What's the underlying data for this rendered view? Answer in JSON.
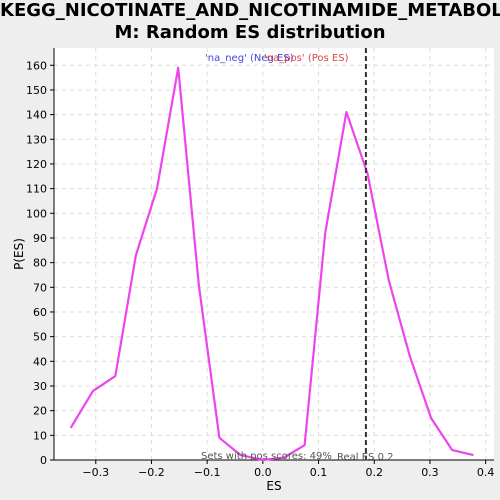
{
  "chart_data": {
    "type": "line",
    "title_line1": "KEGG_NICOTINATE_AND_NICOTINAMIDE_METABOLIS",
    "title_line2": "M: Random ES distribution",
    "xlabel": "ES",
    "ylabel": "P(ES)",
    "xlim": [
      -0.375,
      0.415
    ],
    "ylim": [
      0,
      167
    ],
    "x_ticks": [
      -0.3,
      -0.2,
      -0.1,
      0.0,
      0.1,
      0.2,
      0.3,
      0.4
    ],
    "x_tick_labels": [
      "−0.3",
      "−0.2",
      "−0.1",
      "0.0",
      "0.1",
      "0.2",
      "0.3",
      "0.4"
    ],
    "y_ticks": [
      0,
      10,
      20,
      30,
      40,
      50,
      60,
      70,
      80,
      90,
      100,
      110,
      120,
      130,
      140,
      150,
      160
    ],
    "grid": true,
    "line_color": "#ee44ee",
    "legend": [
      {
        "label": "'na_neg' (Neg ES)",
        "color": "#4444dd"
      },
      {
        "label": "'na_pos' (Pos ES)",
        "color": "#dd4444"
      }
    ],
    "series": [
      {
        "x": [
          -0.345,
          -0.305,
          -0.265,
          -0.228,
          -0.19,
          -0.152,
          -0.115,
          -0.078,
          -0.04,
          0.0,
          0.038,
          0.075,
          0.112,
          0.15,
          0.188,
          0.226,
          0.264,
          0.302,
          0.34,
          0.378
        ],
        "values": [
          13,
          28,
          34,
          83,
          110,
          159,
          71,
          9,
          2,
          0,
          1,
          6,
          92,
          141,
          116,
          73,
          42,
          17,
          4,
          2
        ]
      }
    ],
    "real_es": 0.185,
    "real_es_label": "Real ES 0.2",
    "pos_scores_label": "Sets with pos scores: 49%"
  }
}
